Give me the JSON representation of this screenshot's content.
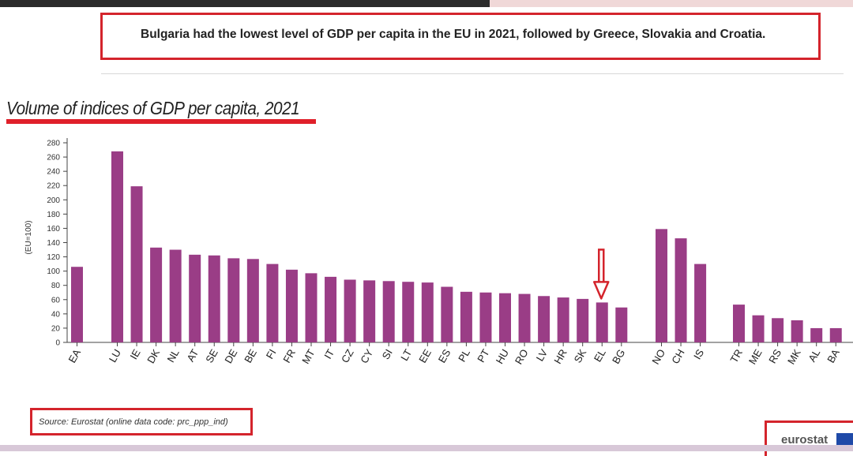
{
  "headline": "Bulgaria had the lowest level of GDP per capita in the EU in 2021, followed by Greece, Slovakia and Croatia.",
  "source": "Source: Eurostat (online data code: prc_ppp_ind)",
  "logo": "eurostat",
  "colors": {
    "bar": "#9a3d86",
    "accent": "#d4242c"
  },
  "chart_data": {
    "type": "bar",
    "title": "Volume of indices of GDP per capita, 2021",
    "ylabel": "(EU=100)",
    "xlabel": "",
    "ylim": [
      0,
      280
    ],
    "yticks": [
      0,
      20,
      40,
      60,
      80,
      100,
      120,
      140,
      160,
      180,
      200,
      220,
      240,
      260,
      280
    ],
    "categories": [
      "EA",
      "LU",
      "IE",
      "DK",
      "NL",
      "AT",
      "SE",
      "DE",
      "BE",
      "FI",
      "FR",
      "MT",
      "IT",
      "CZ",
      "CY",
      "SI",
      "LT",
      "EE",
      "ES",
      "PL",
      "PT",
      "HU",
      "RO",
      "LV",
      "HR",
      "SK",
      "EL",
      "BG",
      "NO",
      "CH",
      "IS",
      "TR",
      "ME",
      "RS",
      "MK",
      "AL",
      "BA"
    ],
    "values": [
      106,
      268,
      219,
      133,
      130,
      123,
      122,
      118,
      117,
      110,
      102,
      97,
      92,
      88,
      87,
      86,
      85,
      84,
      78,
      71,
      70,
      69,
      68,
      65,
      63,
      61,
      56,
      49,
      159,
      146,
      110,
      53,
      38,
      34,
      31,
      20,
      20
    ],
    "groups": [
      [
        "EA"
      ],
      [
        "LU",
        "IE",
        "DK",
        "NL",
        "AT",
        "SE",
        "DE",
        "BE",
        "FI",
        "FR",
        "MT",
        "IT",
        "CZ",
        "CY",
        "SI",
        "LT",
        "EE",
        "ES",
        "PL",
        "PT",
        "HU",
        "RO",
        "LV",
        "HR",
        "SK",
        "EL",
        "BG"
      ],
      [
        "NO",
        "CH",
        "IS"
      ],
      [
        "TR",
        "ME",
        "RS",
        "MK",
        "AL",
        "BA"
      ]
    ],
    "highlight": "EL",
    "grid": false,
    "legend": "none"
  }
}
